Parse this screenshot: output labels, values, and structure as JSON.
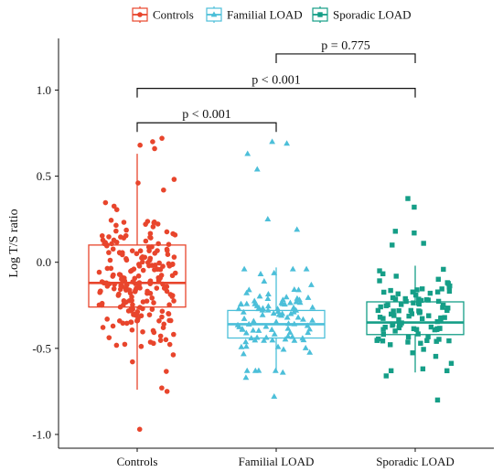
{
  "chart_data": {
    "type": "box",
    "title": "",
    "xlabel": "",
    "ylabel": "Log T/S ratio",
    "ylim": [
      -1.08,
      1.3
    ],
    "yticks": [
      1.0,
      0.5,
      0.0,
      -0.5,
      -1.0
    ],
    "ytick_labels": [
      "1.0",
      "0.5",
      "0.0",
      "-0.5",
      "-1.0"
    ],
    "categories": [
      "Controls",
      "Familial LOAD",
      "Sporadic LOAD"
    ],
    "legend": {
      "position": "top",
      "entries": [
        "Controls",
        "Familial LOAD",
        "Sporadic LOAD"
      ]
    },
    "grid": false,
    "series": [
      {
        "name": "Controls",
        "color": "#e8452c",
        "marker": "circle",
        "box": {
          "q1": -0.26,
          "median": -0.12,
          "q3": 0.1,
          "whisker_low": -0.74,
          "whisker_high": 0.63
        },
        "n_points": 220,
        "spread": 0.22,
        "center": -0.1,
        "extremes": [
          0.72,
          0.7,
          0.68,
          0.66,
          -0.97,
          -0.75,
          -0.73
        ]
      },
      {
        "name": "Familial LOAD",
        "color": "#4cbfd9",
        "marker": "triangle",
        "box": {
          "q1": -0.44,
          "median": -0.36,
          "q3": -0.28,
          "whisker_low": -0.64,
          "whisker_high": -0.03
        },
        "n_points": 100,
        "spread": 0.12,
        "center": -0.34,
        "extremes": [
          0.7,
          0.69,
          0.63,
          0.54,
          0.25,
          0.19,
          -0.78,
          -0.67,
          -0.64
        ]
      },
      {
        "name": "Sporadic LOAD",
        "color": "#159e87",
        "marker": "square",
        "box": {
          "q1": -0.42,
          "median": -0.35,
          "q3": -0.23,
          "whisker_low": -0.64,
          "whisker_high": -0.02
        },
        "n_points": 100,
        "spread": 0.12,
        "center": -0.33,
        "extremes": [
          0.37,
          0.32,
          0.18,
          0.17,
          0.11,
          0.1,
          -0.8,
          -0.66
        ]
      }
    ],
    "comparisons": [
      {
        "from": 1,
        "to": 2,
        "label": "p = 0.775",
        "y": 1.21
      },
      {
        "from": 0,
        "to": 2,
        "label": "p < 0.001",
        "y": 1.01
      },
      {
        "from": 0,
        "to": 1,
        "label": "p < 0.001",
        "y": 0.81
      }
    ]
  }
}
